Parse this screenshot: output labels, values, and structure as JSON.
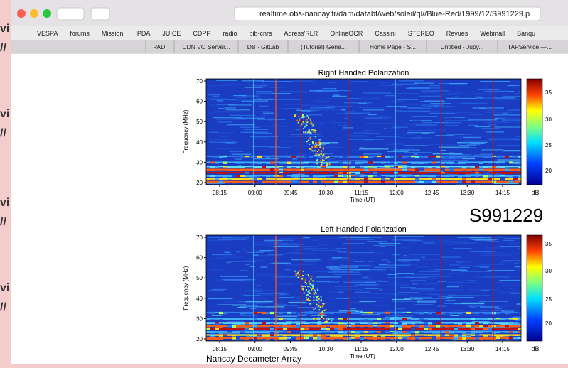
{
  "browser": {
    "url": "realtime.obs-nancay.fr/dam/databf/web/soleil/ql//Blue-Red/1999/12/S991229.p",
    "bookmarks": [
      "VESPA",
      "forums",
      "Mission",
      "IPDA",
      "JUICE",
      "CDPP",
      "radio",
      "bib-cnrs",
      "Adress'RLR",
      "OnlineOCR",
      "Cassini",
      "STEREO",
      "Revues",
      "Webmail",
      "Banqu"
    ],
    "tabs": [
      "PADI",
      "CDN VO Server...",
      "DB · GitLab",
      "(Tutorial) Gene...",
      "Home Page - S...",
      "Untitled - Jupy...",
      "TAPService —..."
    ]
  },
  "background": {
    "fragments": [
      "vi",
      "//",
      "vi",
      "//",
      "vi",
      "//",
      "vi",
      "//"
    ]
  },
  "figure": {
    "id_label": "S991229",
    "footer": "Nancay Decameter Array",
    "panels": [
      {
        "title": "Right Handed Polarization",
        "xlabel": "Time (UT)",
        "ylabel": "Frequency (MHz)",
        "yticks": [
          70,
          60,
          50,
          40,
          30,
          20
        ],
        "xticks": [
          "08:15",
          "09:00",
          "09:45",
          "10:30",
          "11:15",
          "12:00",
          "12:45",
          "13:30",
          "14:15"
        ],
        "cbar_ticks": [
          35,
          30,
          25,
          20
        ],
        "cbar_label": "dB"
      },
      {
        "title": "Left Handed Polarization",
        "xlabel": "Time (UT)",
        "ylabel": "Frequency (MHz)",
        "yticks": [
          70,
          60,
          50,
          40,
          30,
          20
        ],
        "xticks": [
          "08:15",
          "09:00",
          "09:45",
          "10:30",
          "11:15",
          "12:00",
          "12:45",
          "13:30",
          "14:15"
        ],
        "cbar_ticks": [
          35,
          30,
          25,
          20
        ],
        "cbar_label": "dB"
      }
    ]
  }
}
